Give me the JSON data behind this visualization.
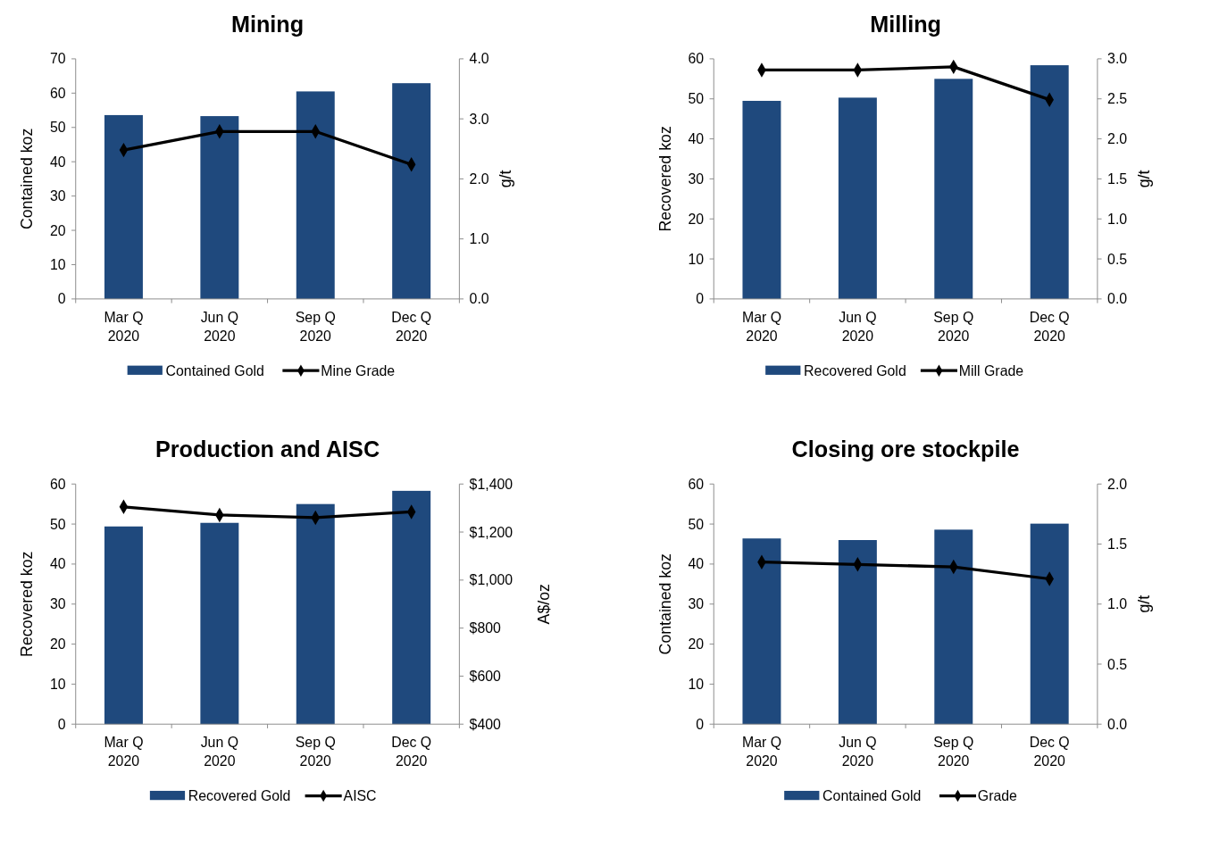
{
  "chart_data": [
    {
      "type": "bar",
      "title": "Mining",
      "categories": [
        "Mar Q\n2020",
        "Jun Q\n2020",
        "Sep Q\n2020",
        "Dec Q\n2020"
      ],
      "ylabel": "Contained koz",
      "y2label": "g/t",
      "ylim": [
        0,
        70
      ],
      "yticks": [
        0,
        10,
        20,
        30,
        40,
        50,
        60,
        70
      ],
      "y2lim": [
        0,
        4
      ],
      "y2ticks": [
        {
          "value": 0,
          "label": "0.0"
        },
        {
          "value": 1,
          "label": "1.0"
        },
        {
          "value": 2,
          "label": "2.0"
        },
        {
          "value": 3,
          "label": "3.0"
        },
        {
          "value": 4,
          "label": "4.0"
        }
      ],
      "legend": "bottom",
      "marker": "diamond",
      "series": [
        {
          "name": "Contained Gold",
          "color": "#1f497d",
          "values": [
            53.6,
            53.3,
            60.5,
            62.9
          ]
        },
        {
          "name": "Mine Grade",
          "type": "line",
          "axis": "y2",
          "color": "#000000",
          "values": [
            2.48,
            2.79,
            2.79,
            2.24
          ]
        }
      ]
    },
    {
      "type": "bar",
      "title": "Milling",
      "categories": [
        "Mar Q\n2020",
        "Jun Q\n2020",
        "Sep Q\n2020",
        "Dec Q\n2020"
      ],
      "ylabel": "Recovered koz",
      "y2label": "g/t",
      "ylim": [
        0,
        60
      ],
      "yticks": [
        0,
        10,
        20,
        30,
        40,
        50,
        60
      ],
      "y2lim": [
        0,
        3
      ],
      "y2ticks": [
        {
          "value": 0,
          "label": "0.0"
        },
        {
          "value": 0.5,
          "label": "0.5"
        },
        {
          "value": 1,
          "label": "1.0"
        },
        {
          "value": 1.5,
          "label": "1.5"
        },
        {
          "value": 2,
          "label": "2.0"
        },
        {
          "value": 2.5,
          "label": "2.5"
        },
        {
          "value": 3,
          "label": "3.0"
        }
      ],
      "legend": "bottom",
      "marker": "diamond",
      "series": [
        {
          "name": "Recovered Gold",
          "color": "#1f497d",
          "values": [
            49.5,
            50.3,
            55.0,
            58.4
          ]
        },
        {
          "name": "Mill Grade",
          "type": "line",
          "axis": "y2",
          "color": "#000000",
          "values": [
            2.86,
            2.86,
            2.9,
            2.49
          ]
        }
      ]
    },
    {
      "type": "bar",
      "title": "Production and AISC",
      "categories": [
        "Mar Q\n2020",
        "Jun Q\n2020",
        "Sep Q\n2020",
        "Dec Q\n2020"
      ],
      "ylabel": "Recovered koz",
      "y2label": "A$/oz",
      "ylim": [
        0,
        60
      ],
      "yticks": [
        0,
        10,
        20,
        30,
        40,
        50,
        60
      ],
      "y2lim": [
        400,
        1400
      ],
      "y2ticks": [
        {
          "value": 400,
          "label": "$400"
        },
        {
          "value": 600,
          "label": "$600"
        },
        {
          "value": 800,
          "label": "$800"
        },
        {
          "value": 1000,
          "label": "$1,000"
        },
        {
          "value": 1200,
          "label": "$1,200"
        },
        {
          "value": 1400,
          "label": "$1,400"
        }
      ],
      "legend": "bottom",
      "marker": "diamond",
      "series": [
        {
          "name": "Recovered Gold",
          "color": "#1f497d",
          "values": [
            49.4,
            50.3,
            55.0,
            58.3
          ]
        },
        {
          "name": "AISC",
          "type": "line",
          "axis": "y2",
          "color": "#000000",
          "values": [
            1305,
            1271,
            1260,
            1284
          ]
        }
      ]
    },
    {
      "type": "bar",
      "title": "Closing ore stockpile",
      "categories": [
        "Mar Q\n2020",
        "Jun Q\n2020",
        "Sep Q\n2020",
        "Dec Q\n2020"
      ],
      "ylabel": "Contained koz",
      "y2label": "g/t",
      "ylim": [
        0,
        60
      ],
      "yticks": [
        0,
        10,
        20,
        30,
        40,
        50,
        60
      ],
      "y2lim": [
        0,
        2
      ],
      "y2ticks": [
        {
          "value": 0,
          "label": "0.0"
        },
        {
          "value": 0.5,
          "label": "0.5"
        },
        {
          "value": 1,
          "label": "1.0"
        },
        {
          "value": 1.5,
          "label": "1.5"
        },
        {
          "value": 2,
          "label": "2.0"
        }
      ],
      "legend": "bottom",
      "marker": "diamond",
      "series": [
        {
          "name": "Contained Gold",
          "color": "#1f497d",
          "values": [
            46.4,
            46.0,
            48.6,
            50.1
          ]
        },
        {
          "name": "Grade",
          "type": "line",
          "axis": "y2",
          "color": "#000000",
          "values": [
            1.35,
            1.33,
            1.31,
            1.21
          ]
        }
      ]
    }
  ]
}
